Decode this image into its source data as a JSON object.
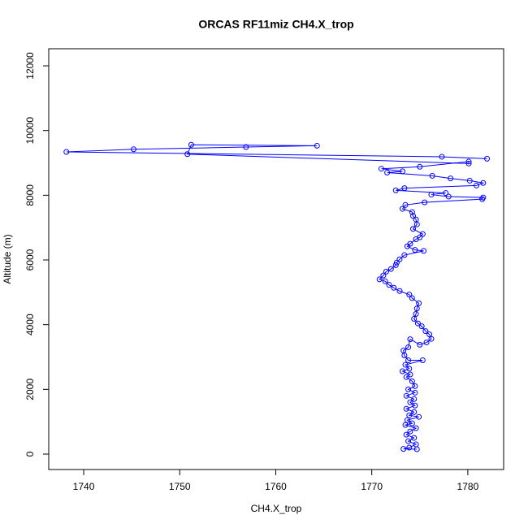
{
  "chart_data": {
    "type": "line",
    "title": "ORCAS RF11miz CH4.X_trop",
    "xlabel": "CH4.X_trop",
    "ylabel": "Altitude (m)",
    "color": "#0000ff",
    "markers": true,
    "xlim": [
      1736.36,
      1783.73
    ],
    "xticks": [
      1740,
      1750,
      1760,
      1770,
      1780
    ],
    "ylim": [
      -477,
      12528
    ],
    "yticks": [
      0,
      2000,
      4000,
      6000,
      8000,
      10000,
      12000
    ],
    "x": [
      1782,
      1777.3,
      1738.2,
      1745.2,
      1756.9,
      1764.3,
      1751.2,
      1750.8,
      1780.1,
      1780.1,
      1775,
      1771,
      1773.2,
      1771.6,
      1776.3,
      1778.2,
      1780.2,
      1781.6,
      1780.9,
      1773.4,
      1772.5,
      1777.7,
      1776.2,
      1778,
      1781.6,
      1781.5,
      1775.5,
      1773.5,
      1773.2,
      1774.2,
      1774.3,
      1774.6,
      1774.7,
      1774.3,
      1775.3,
      1775,
      1774.6,
      1774.0,
      1773.7,
      1774.5,
      1775.4,
      1773.4,
      1772.9,
      1772.6,
      1772.5,
      1772.0,
      1771.5,
      1771.2,
      1770.8,
      1771.4,
      1771.8,
      1772.3,
      1772.9,
      1773.9,
      1774.2,
      1774.9,
      1774.7,
      1774.6,
      1774.4,
      1774.8,
      1775.2,
      1775.6,
      1776.0,
      1776.2,
      1775.7,
      1775.0,
      1774.0,
      1773.8,
      1773.3,
      1773.4,
      1773.8,
      1775.3,
      1773.5,
      1773.9,
      1773.2,
      1774.0,
      1773.6,
      1774.2,
      1774.5,
      1773.8,
      1774.5,
      1773.6,
      1774.4,
      1774.0,
      1774.5,
      1773.6,
      1774.4,
      1773.9,
      1774.9,
      1773.7,
      1774.2,
      1773.5,
      1774.6,
      1774.0,
      1773.6,
      1774.4,
      1773.8,
      1774.6,
      1773.9,
      1773.3,
      1774.7
    ],
    "values": [
      9130,
      9190,
      9340,
      9420,
      9490,
      9530,
      9560,
      9270,
      8980,
      9040,
      8880,
      8820,
      8740,
      8700,
      8600,
      8520,
      8450,
      8380,
      8300,
      8220,
      8150,
      8070,
      8020,
      7960,
      7930,
      7880,
      7780,
      7700,
      7580,
      7480,
      7360,
      7250,
      7100,
      6960,
      6800,
      6700,
      6640,
      6500,
      6420,
      6310,
      6280,
      6150,
      6020,
      5920,
      5840,
      5720,
      5640,
      5520,
      5400,
      5340,
      5230,
      5140,
      5040,
      4930,
      4820,
      4660,
      4500,
      4330,
      4180,
      4040,
      3950,
      3800,
      3700,
      3560,
      3450,
      3380,
      3550,
      3300,
      3200,
      3050,
      2900,
      2900,
      2760,
      2640,
      2560,
      2460,
      2380,
      2250,
      2100,
      2000,
      1900,
      1800,
      1700,
      1600,
      1500,
      1400,
      1300,
      1200,
      1150,
      1050,
      950,
      900,
      800,
      700,
      600,
      500,
      400,
      300,
      200,
      160,
      150
    ]
  }
}
